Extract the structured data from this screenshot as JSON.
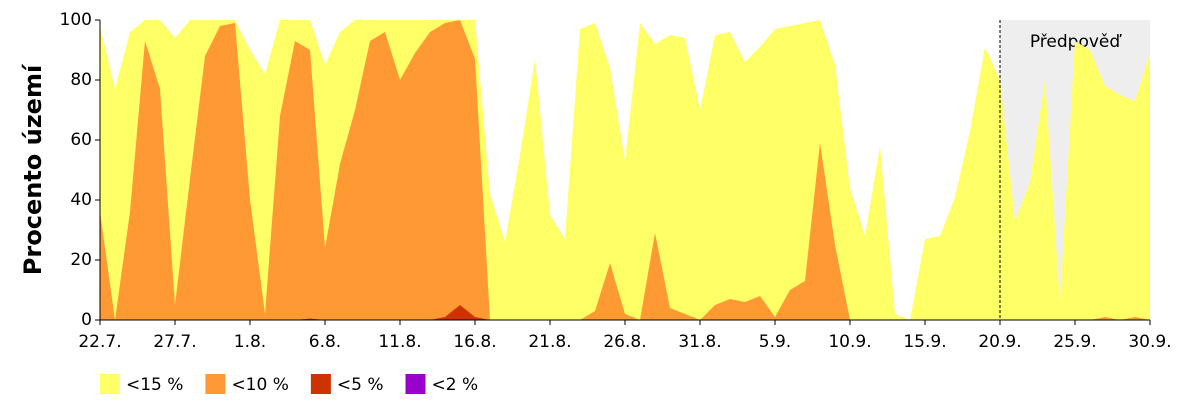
{
  "chart_data": {
    "type": "area",
    "y_label": "Procento území",
    "categories": [
      "22.7.",
      null,
      null,
      null,
      null,
      "27.7.",
      null,
      null,
      null,
      null,
      "1.8.",
      null,
      null,
      null,
      null,
      "6.8.",
      null,
      null,
      null,
      null,
      "11.8.",
      null,
      null,
      null,
      null,
      "16.8.",
      null,
      null,
      null,
      null,
      "21.8.",
      null,
      null,
      null,
      null,
      "26.8.",
      null,
      null,
      null,
      null,
      "31.8.",
      null,
      null,
      null,
      null,
      "5.9.",
      null,
      null,
      null,
      null,
      "10.9.",
      null,
      null,
      null,
      null,
      "15.9.",
      null,
      null,
      null,
      null,
      "20.9.",
      null,
      null,
      null,
      null,
      "25.9.",
      null,
      null,
      null,
      null,
      "30.9."
    ],
    "series": [
      {
        "name": "<15 %",
        "color": "#ffff66",
        "values": [
          98,
          77,
          96,
          100,
          100,
          94,
          100,
          100,
          100,
          100,
          90,
          82,
          100,
          100,
          100,
          85,
          96,
          100,
          100,
          100,
          100,
          100,
          100,
          100,
          100,
          100,
          42,
          26,
          55,
          87,
          35,
          27,
          97,
          99,
          84,
          53,
          99,
          92,
          95,
          94,
          70,
          95,
          96,
          86,
          91,
          97,
          98,
          99,
          100,
          85,
          44,
          28,
          58,
          2,
          0,
          27,
          28,
          41,
          63,
          91,
          80,
          33,
          46,
          80,
          6,
          93,
          90,
          78,
          75,
          73,
          89
        ]
      },
      {
        "name": "<10 %",
        "color": "#ff9933",
        "values": [
          36,
          0,
          36,
          93,
          77,
          5,
          47,
          88,
          98,
          99,
          40,
          2,
          68,
          93,
          90,
          24,
          52,
          70,
          93,
          96,
          80,
          89,
          96,
          99,
          100,
          87,
          0,
          0,
          0,
          0,
          0,
          0,
          0,
          3,
          19,
          2,
          0,
          29,
          4,
          2,
          0,
          5,
          7,
          6,
          8,
          1,
          10,
          13,
          59,
          25,
          0,
          0,
          0,
          0,
          0,
          0,
          0,
          0,
          0,
          0,
          0,
          0,
          0,
          0,
          0,
          0,
          0,
          1,
          0,
          1,
          0
        ]
      },
      {
        "name": "<5 %",
        "color": "#cc3300",
        "values": [
          0,
          0,
          0,
          0,
          0,
          0,
          0,
          0,
          0,
          0,
          0,
          0,
          0,
          0,
          0.5,
          0,
          0,
          0,
          0,
          0,
          0,
          0,
          0,
          1,
          5,
          1,
          0,
          0,
          0,
          0,
          0,
          0,
          0,
          0,
          0,
          0,
          0,
          0,
          0,
          0,
          0,
          0,
          0,
          0,
          0,
          0,
          0,
          0,
          0,
          0,
          0,
          0,
          0,
          0,
          0,
          0,
          0,
          0,
          0,
          0,
          0,
          0,
          0,
          0,
          0,
          0,
          0,
          0,
          0,
          0,
          0
        ]
      },
      {
        "name": "<2 %",
        "color": "#9900cc",
        "values": [
          0,
          0,
          0,
          0,
          0,
          0,
          0,
          0,
          0,
          0,
          0,
          0,
          0,
          0,
          0,
          0,
          0,
          0,
          0,
          0,
          0,
          0,
          0,
          0,
          0,
          0,
          0,
          0,
          0,
          0,
          0,
          0,
          0,
          0,
          0,
          0,
          0,
          0,
          0,
          0,
          0,
          0,
          0,
          0,
          0,
          0,
          0,
          0,
          0,
          0,
          0,
          0,
          0,
          0,
          0,
          0,
          0,
          0,
          0,
          0,
          0,
          0,
          0,
          0,
          0,
          0,
          0,
          0,
          0,
          0,
          0
        ]
      }
    ],
    "forecast": {
      "label": "Předpověď",
      "start": "20.9.",
      "color": "#eeeeee"
    },
    "ylim": [
      0,
      100
    ],
    "yticks": [
      0,
      20,
      40,
      60,
      80,
      100
    ],
    "grid": false
  }
}
